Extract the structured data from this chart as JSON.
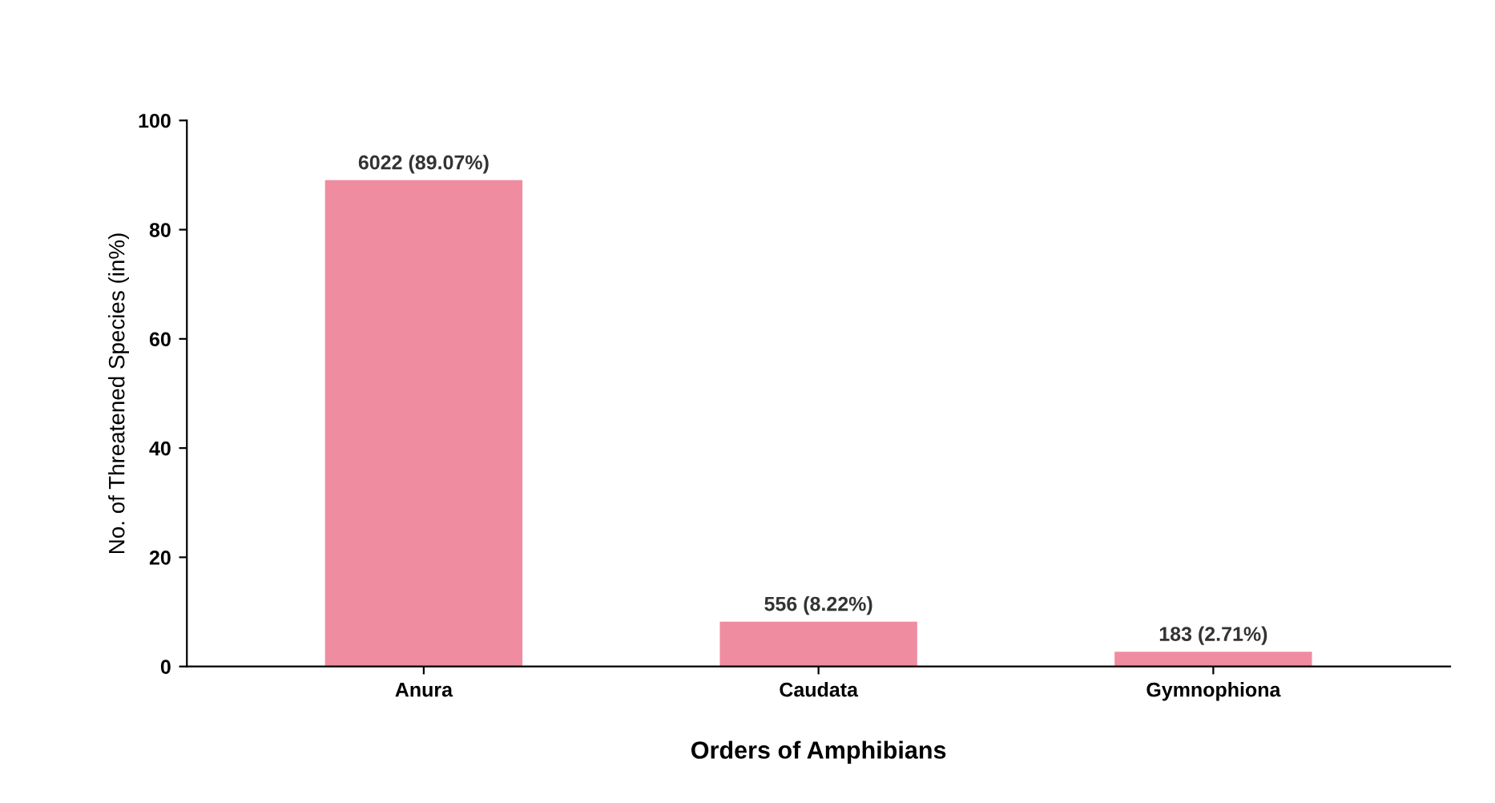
{
  "chart_data": {
    "type": "bar",
    "xlabel": "Orders of Amphibians",
    "ylabel": "No. of Threatened Species (in%)",
    "categories": [
      "Anura",
      "Caudata",
      "Gymnophiona"
    ],
    "values": [
      89.07,
      8.22,
      2.71
    ],
    "value_labels": [
      "6022 (89.07%)",
      "556 (8.22%)",
      "183 (2.71%)"
    ],
    "color": "#f08ca0",
    "ylim": [
      0,
      100
    ],
    "yticks": [
      0,
      20,
      40,
      60,
      80,
      100
    ],
    "grid": false,
    "legend": false
  }
}
